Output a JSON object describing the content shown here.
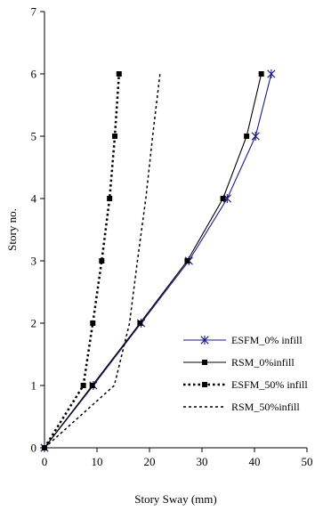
{
  "chart_data": {
    "type": "line",
    "xlabel": "Story Sway (mm)",
    "ylabel": "Story no.",
    "xlim": [
      0,
      50
    ],
    "ylim": [
      0,
      7
    ],
    "xticks": [
      0,
      10,
      20,
      30,
      40,
      50
    ],
    "yticks": [
      0,
      1,
      2,
      3,
      4,
      5,
      6,
      7
    ],
    "grid": false,
    "legend": "bottom-right",
    "series": [
      {
        "name": "ESFM_0% infill",
        "color": "#1a1a80",
        "style": "solid",
        "marker": "star",
        "x": [
          0,
          9.3,
          18.4,
          27.5,
          34.8,
          40.2,
          43.2
        ],
        "y": [
          0,
          1,
          2,
          3,
          4,
          5,
          6
        ]
      },
      {
        "name": "RSM_0%infill",
        "color": "#000000",
        "style": "solid",
        "marker": "square",
        "x": [
          0,
          9.1,
          18.2,
          27.2,
          34.0,
          38.5,
          41.3
        ],
        "y": [
          0,
          1,
          2,
          3,
          4,
          5,
          6
        ]
      },
      {
        "name": "ESFM_50% infill",
        "color": "#000000",
        "style": "dotted",
        "marker": "square",
        "x": [
          0,
          7.4,
          9.2,
          10.9,
          12.4,
          13.4,
          14.2
        ],
        "y": [
          0,
          1,
          2,
          3,
          4,
          5,
          6
        ]
      },
      {
        "name": "RSM_50%infill",
        "color": "#000000",
        "style": "dashed",
        "marker": "none",
        "x": [
          0,
          13.3,
          16.2,
          17.7,
          19.3,
          20.6,
          22.0
        ],
        "y": [
          0,
          1,
          2,
          3,
          4,
          5,
          6
        ]
      }
    ]
  }
}
